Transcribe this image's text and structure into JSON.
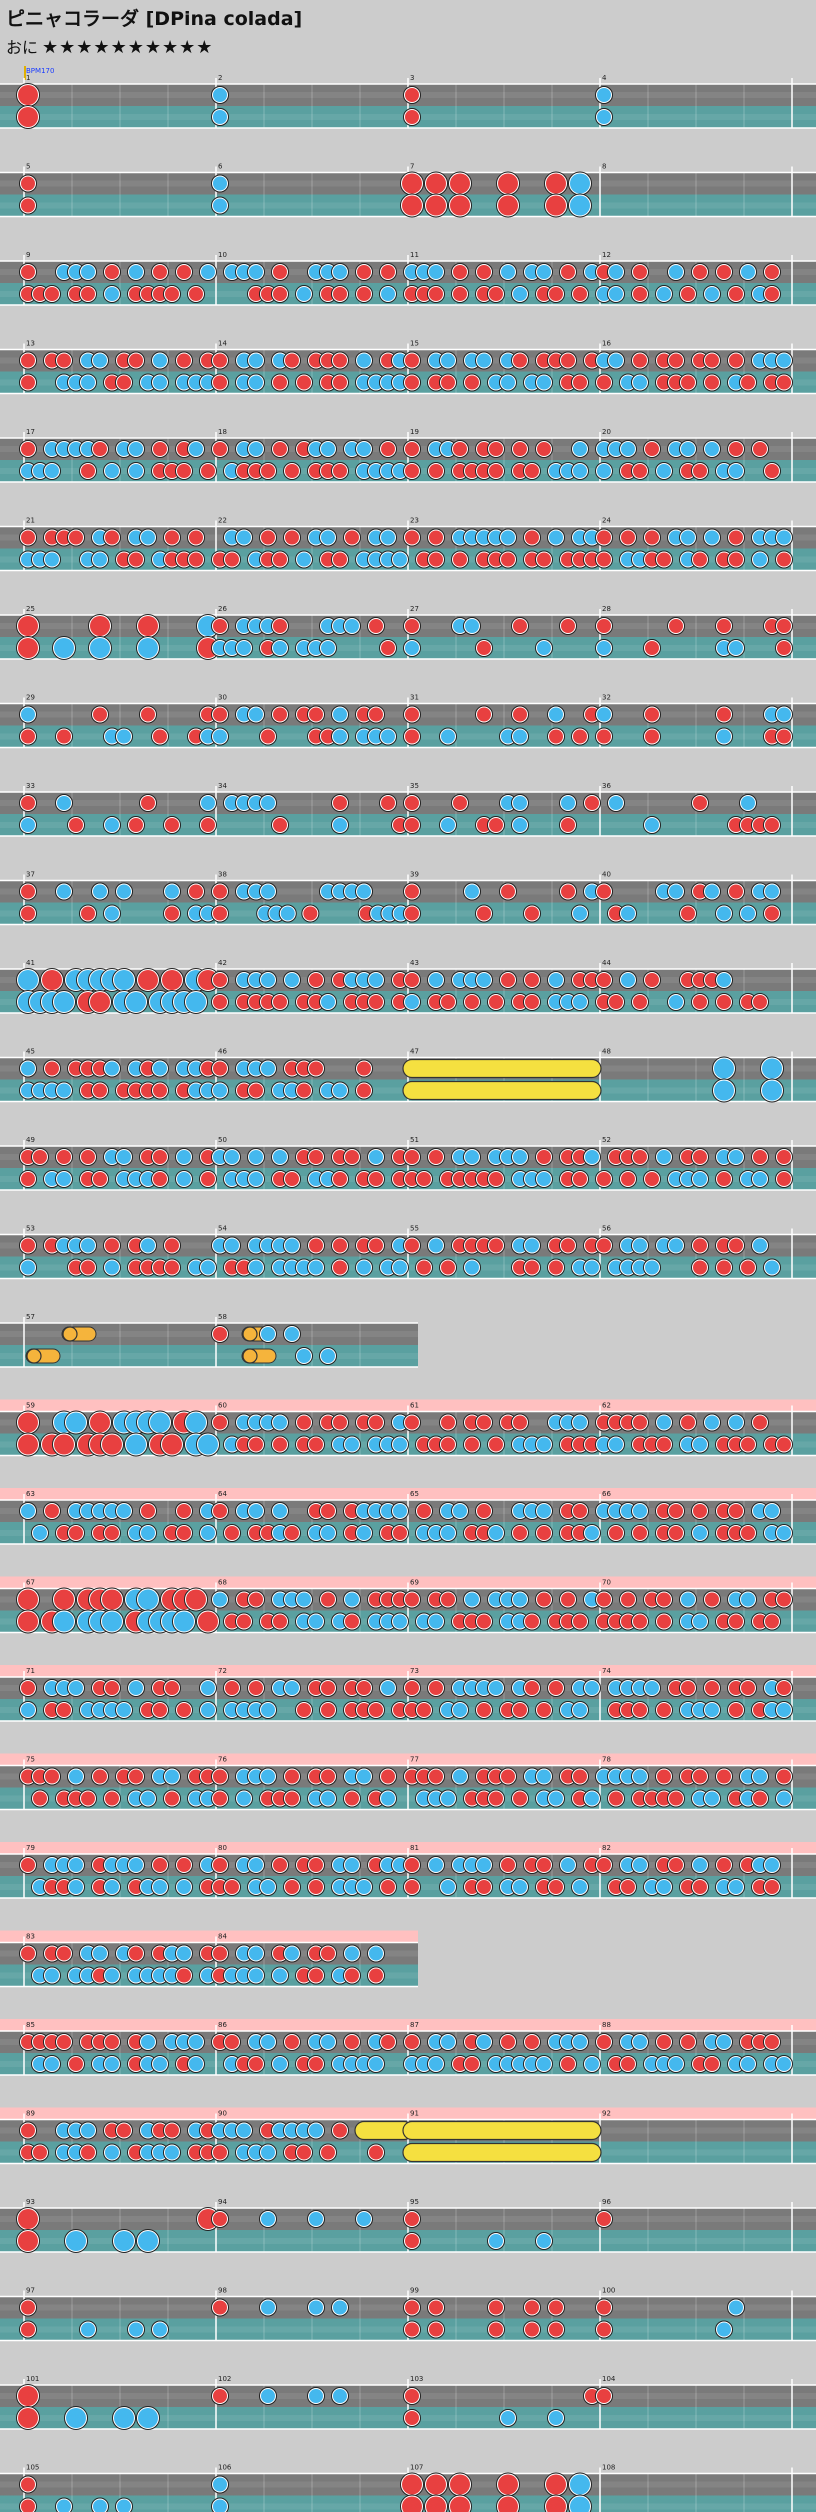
{
  "song": {
    "title": "ピニャコラーダ [DPina colada]",
    "course": "おに",
    "stars": "★★★★★★★★★★"
  },
  "bpm_label": "BPM170",
  "colors": {
    "don": "#e84040",
    "ka": "#44b8ee",
    "roll": "#f5e040",
    "balloon": "#f5b43c",
    "lane_top": "#7a7a7a",
    "lane_bottom": "#5aa0a0",
    "gogo": "#ffc0c0"
  },
  "chart_data": {
    "type": "taiko-score",
    "measures_per_row": 4,
    "rows": [
      {
        "bars": [
          1,
          2,
          3,
          4
        ],
        "gogo": false,
        "p1": "D000000000000000|K000000000000000|D000000000000000|K000000000000000",
        "p2": "D000000000000000|K000000000000000|D000000000000000|K000000000000000",
        "big": [
          0
        ]
      },
      {
        "bars": [
          5,
          6,
          7,
          8
        ],
        "gogo": false,
        "p1": "D000000000000000|K000000000000000|D0D0D000D000D0K0|",
        "p2": "D000000000000000|K000000000000000|D0D0D000D000D0K0|",
        "big": [
          2,
          3
        ]
      },
      {
        "bars": [
          9,
          10,
          11,
          12
        ],
        "gogo": false,
        "p1": "D00KKK0D0K0D0D0K|0KKK0D00KKK0D0D0|KKK0D0D0K0KK0D0K|DK0D00K0D0D0K0D0",
        "p2": "DDD0DD0K0DDDD0D0|000DDD0K0DD0D0K0|DDD0D0DD0K0DD0D0|KK0D0K0D0K0D0KD0",
        "big": []
      },
      {
        "bars": [
          13,
          14,
          15,
          16
        ],
        "gogo": false,
        "p1": "D0DD0KK0DD0K0D0D|D0KK0KD0DDD0K0DK|D0KK0KK0KD0DDD0D|KK0D0DD0DD0D0KKK",
        "p2": "D00KKK0DD0KK0KKK|D0KK0D0D0DD0KKKK|D0DD0D0KK0KK0DD0|D0KK0DDD0D0KD0DD",
        "big": []
      },
      {
        "bars": [
          17,
          18,
          19,
          20
        ],
        "gogo": false,
        "p1": "D0KKKKD0KK0D0DK0|D0KK0D0DKK0KK0D0|D0KKD0DD0D0D00K0|KKK0D0KK0K0D0D00",
        "p2": "KKK00D0K0K0DDD0D|0KDDD0D0DDD0KKKK|D0D0DDDD0DD0KKK0|K0DD0K0DD0KK00D0",
        "big": []
      },
      {
        "bars": [
          21,
          22,
          23,
          24
        ],
        "gogo": false,
        "p1": "D0DDD0KD0KK0D0D0|0KK0D0D0KK0D0KK0|D0D0KKKKK0D0K0KK|D0D0D0KK0K0D0KKK",
        "p2": "KKK00KK0DD0KDDD0|DD0KDD0K0DD0KKKK|0DD0D0DDD0DD0DDD|D0KKDD0KD0DD0K0D",
        "big": []
      },
      {
        "bars": [
          25,
          26,
          27,
          28
        ],
        "gogo": false,
        "p1": "D00000D000D0000K|D0KKKD000KKK0D00|D000KK000D000D00|D00000D000D000DD",
        "p2": "D00K00K000K0000D|KKK0DK0KKK0000D0|K00000D0000K0000|K000D00000KK000D",
        "big": [
          0
        ]
      },
      {
        "bars": [
          29,
          30,
          31,
          32
        ],
        "gogo": false,
        "p1": "K00000D000D0000D|D0KK0D0DD0K0DD00|D00000D00D00K00D|K000D00000D000KK",
        "p2": "D00D000KK00D00DK|K000D000DDK0KKK0|D00K0000KK00D0D0|D000D00000K000DD",
        "big": []
      },
      {
        "bars": [
          33,
          34,
          35,
          36
        ],
        "gogo": false,
        "p1": "D00K000000D0000K|0KKKK00000D000D0|D000D000KK000K0D|0K000000D000K000",
        "p2": "K000D00K0D00D00D|00000D0000K0000D|D00K00DD0K000D00|0000K000000DDDD0",
        "big": []
      },
      {
        "bars": [
          37,
          38,
          39,
          40
        ],
        "gogo": false,
        "p1": "D00K00K0K000K0D0|D0KKK0000KKKK000|D0000K00D0000D0K|D0000KK0DK0D0KK0",
        "p2": "D0000D0K0000D0KK|D000KKK0D0000DKKK|D00000D000D000K0|0DK0000D00K0K0D0",
        "big": []
      },
      {
        "bars": [
          41,
          42,
          43,
          44
        ],
        "gogo": false,
        "p1": "K0D0KKKKK0D0D0KD|D0KKK0K0D0DKKK0D|D0K0KKK0D0D0K0DD|D0K0D00DDDK00000",
        "p2": "KKKK0DD0KK0KKKK0|D0DDDD0DDK0DDD0D|K0DD0D0D0DD0KKK0|DD0D00K0D0D0DD00",
        "big": [
          0
        ]
      },
      {
        "bars": [
          45,
          46,
          47,
          48
        ],
        "gogo": false,
        "p1": "K0D0DDDK0KDK0KKD|D0KKK0DDD000D000|R555555555555558|0000000000K000K0",
        "p2": "KKKK0DD0DDDD0DKK|K0DD0KKD0KK0D000|R555555555555558|0000000000K000K0",
        "big": [],
        "big_measure_4": true
      },
      {
        "bars": [
          49,
          50,
          51,
          52
        ],
        "gogo": false,
        "p1": "DD0D0D0KK0DD0K0D|KK0K0K0DD0DD0K0D|D0D0KK0KKK0D0DDK|0DDD0K0DD0KK0D0D",
        "p2": "D0KK0DD0KKKD0K0D|0KKK0DD0KKD0DD0D|DD0DDDDD0KKK0DD0|D0D0D0KKK0D0KK0D",
        "big": []
      },
      {
        "bars": [
          53,
          54,
          55,
          56
        ],
        "gogo": false,
        "p1": "D0DKKK0D0DK0D000|KK0KKKK0D0D0DD0K|D0K0DDDD0KK0DD0D|D0KK0KK0D0DD0K00",
        "p2": "K000DD0K0DDDD0KK|0DDK0KKKK0D0K0KK|0D0D0K000DD0D0KK|0KKKK000D0D0D0K0",
        "big": []
      },
      {
        "bars": [
          57,
          58
        ],
        "gogo": false,
        "half": true,
        "p1": "000B000000000000|D0B0K0K000000000",
        "p2": "B000000000000000|00B0000K0K000000",
        "big": []
      },
      {
        "bars": [
          59,
          60,
          61,
          62
        ],
        "gogo": true,
        "p1": "D00KK0D0KKKK0DK0|D0KKKK0D0DD0DD0K|D00D0DD0DD00KKK0|DDDD0K0D0K0K0D00",
        "p2": "D0DD0DDD0K0DD0KK|0KDD0D0DD0KK0KKK|0DDD0D0D0KKK0DDD|KK0DDD0KK0DDD0DD",
        "big": [
          0
        ]
      },
      {
        "bars": [
          63,
          64,
          65,
          66
        ],
        "gogo": true,
        "p1": "K0D0KKKKK0D00D0K|D0KK0K00DD0DKKKK|0D0KK0D00KKK0DD0|KKKK0DD0D0DD0KK0",
        "p2": "0K0DD0DD0KK0DD0K|0D0DDKD0KK0DK0DD|0KKK0DDK0D0D0DDK|0D0D0DD0K0DDD0KK",
        "big": []
      },
      {
        "bars": [
          67,
          68,
          69,
          70
        ],
        "gogo": true,
        "p1": "D00D0DDD0KK0DDD0|K0DD0KKK0D0K0DDD|D0DD0K0KKK0D0D0K|D0D0DD0K0D0KK0DD",
        "p2": "D0DK0KKK0DKKKK0D|0DD0DD0KK0KD0KKK|0KK0DDD0KKD0DDD0|DDDD0D0KK0DD0DD0",
        "big": [
          0
        ]
      },
      {
        "bars": [
          71,
          72,
          73,
          74
        ],
        "gogo": true,
        "p1": "D0KKK0DD0K0DD00K|0D0D0KK0DD0DD0K0|D0D0KKKK0KD0D0KK|0KKKK0DD0D0DD0KD",
        "p2": "K0DD0KKKK0DD0D0K|0KKKK00D0D0DDD0D|DD0KK0D0DD0D0KK0|0DDD0D0KKK0D0DKK",
        "big": []
      },
      {
        "bars": [
          75,
          76,
          77,
          78
        ],
        "gogo": true,
        "p1": "DDD0K0D0DD0KK0DD|D0KKK0D0DD0KK0D0|DDD0K0DDD0KK0DD0|KKKK0D0DD0D0KK0D",
        "p2": "0D0DDD0D0KK0D0KK|D0K0DDD0KK0D0DK0|0KKK0DDD0D0KK0DK|0D0DDDD0KK0DKD0K",
        "big": []
      },
      {
        "bars": [
          79,
          80,
          81,
          82
        ],
        "gogo": true,
        "p1": "D0KKK0DKKK0D0D0K|D0KK0D0DD0KK0DKK|D0K0KKK0D0DD0K0D|D0KK0DD0K0D0DKK0",
        "p2": "0KDDK0DK0DKK0K0D|DD0KK0D0D0KKK0D0|D00K0DD0KK0DD0K0|0DD0KK0DD0KK0DD0",
        "big": []
      },
      {
        "bars": [
          83,
          84
        ],
        "gogo": true,
        "half": true,
        "p1": "D0DD0KK0KD0DKK0D|D0KK0DK0DD0K0K00",
        "p2": "0KK0KKDK0KKKKD0K|DKKK0K0DD0KD0D00",
        "big": []
      },
      {
        "bars": [
          85,
          86,
          87,
          88
        ],
        "gogo": true,
        "p1": "DDDD0DDD0DK0KKK0|DD0KK0D0KK0D0KD0|D0KK0DK0D0D0KKK0|D0KK0D0D0KK0DDD0",
        "p2": "0KK0D0KK0DKK0DK0|0KDD0K0DD0KKKK00|KKK0DD0KKKKK0D0K|0DD0KKK0DD0KK0KK",
        "big": []
      },
      {
        "bars": [
          89,
          90,
          91,
          92
        ],
        "gogo": true,
        "p1": "D00KKK0DD0KDD0KD|KKK0DKKKK0D0R555|R555555555555558|",
        "p2": "DD0KKD0K0DKKK0DD|D0KKK0DD0D000D00|R555555555555558|",
        "big": []
      },
      {
        "bars": [
          93,
          94,
          95,
          96
        ],
        "gogo": false,
        "p1": "D00000000000000D|D000K000K000K000|D000000000000000|D000000000000000",
        "p2": "D000K000K0K00000|0000000000000000|D000000K000K0000|0000000000000000",
        "big": [
          0
        ]
      },
      {
        "bars": [
          97,
          98,
          99,
          100
        ],
        "gogo": false,
        "p1": "D000000000000000|D000K000K0K00000|D0D0000D00D0D000|D0000000000K0000",
        "p2": "D0000K000K0K0000|0000000000000000|D0D0000D00D0D000|D000000000K00000",
        "big": []
      },
      {
        "bars": [
          101,
          102,
          103,
          104
        ],
        "gogo": false,
        "p1": "D000000000000000|D000K000K0K00000|D00000000000000D|D000000000000000",
        "p2": "D000K000K0K00000|0000000000000000|D0000000K000K000|0000000000000000",
        "big": [
          0
        ]
      },
      {
        "bars": [
          105,
          106,
          107,
          108
        ],
        "gogo": false,
        "p1": "D000000000000000|K000000000000000|D0D0D000D000D0K0|",
        "p2": "D00K00K0K0000000|K000000000000000|D0D0D000D000D0K0|",
        "big": [
          2,
          3
        ]
      }
    ]
  }
}
